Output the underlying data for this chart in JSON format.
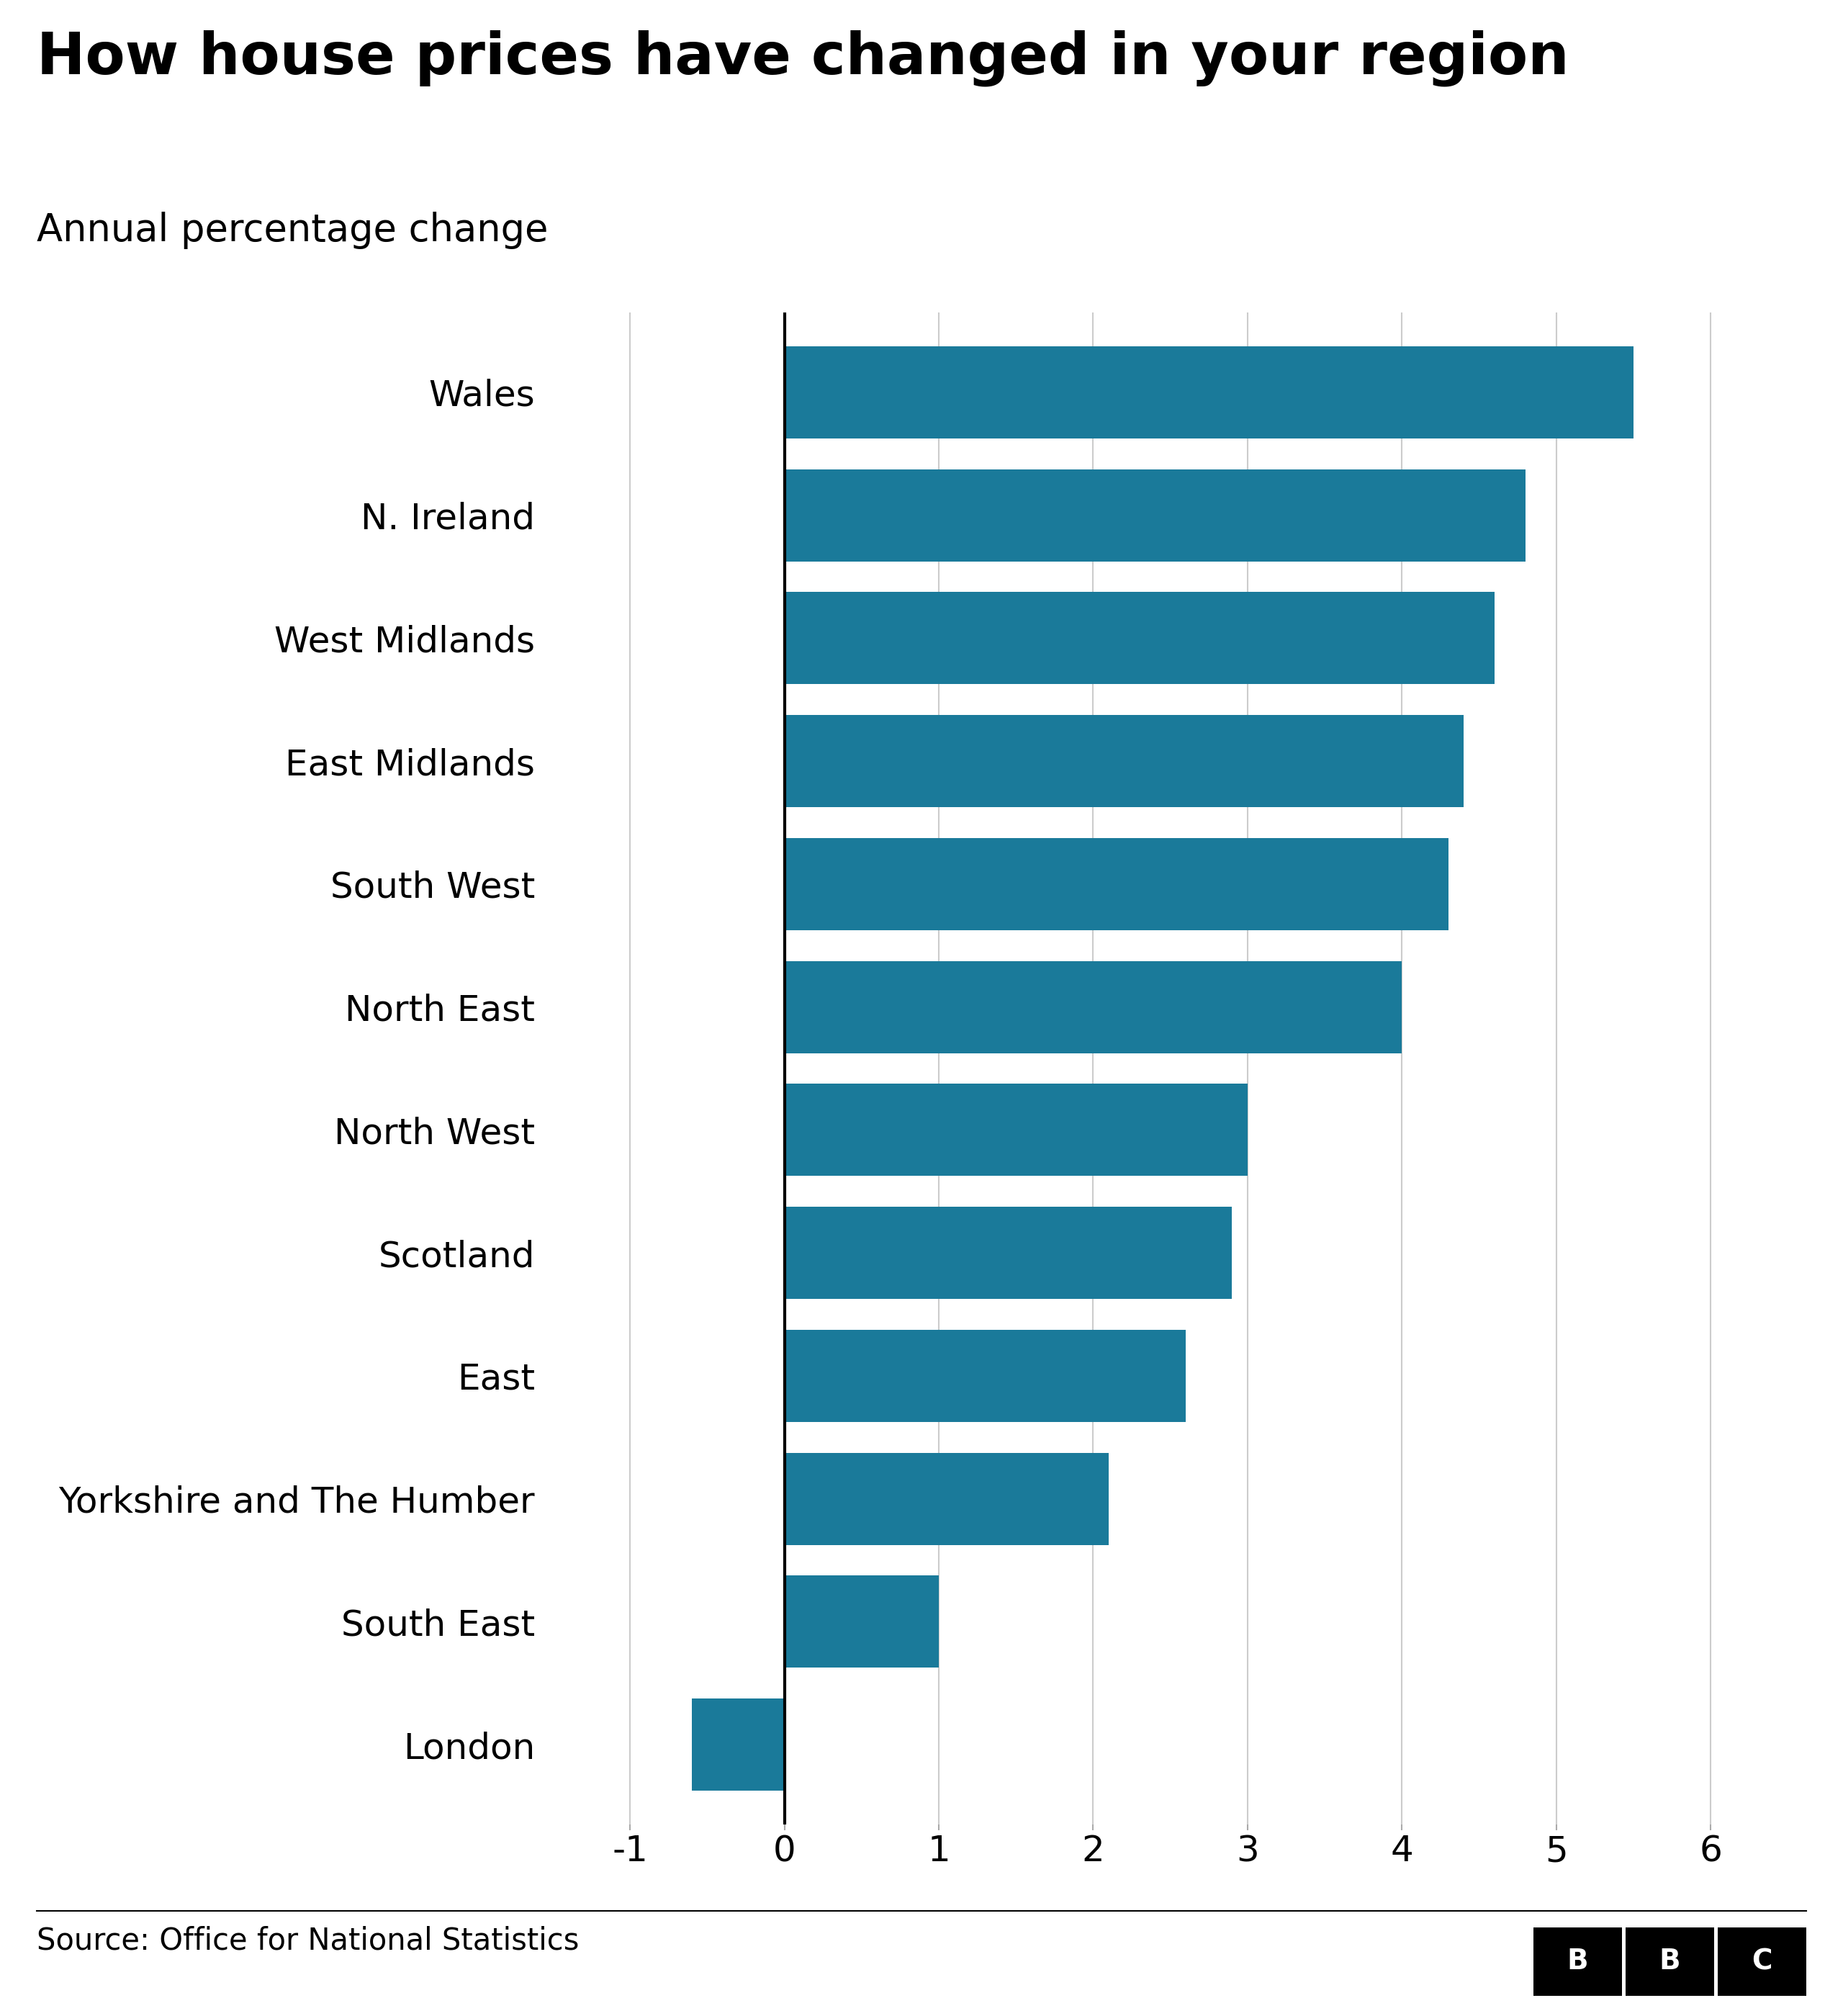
{
  "title": "How house prices have changed in your region",
  "subtitle": "Annual percentage change",
  "source": "Source: Office for National Statistics",
  "regions": [
    "Wales",
    "N. Ireland",
    "West Midlands",
    "East Midlands",
    "South West",
    "North East",
    "North West",
    "Scotland",
    "East",
    "Yorkshire and The Humber",
    "South East",
    "London"
  ],
  "values": [
    5.5,
    4.8,
    4.6,
    4.4,
    4.3,
    4.0,
    3.0,
    2.9,
    2.6,
    2.1,
    1.0,
    -0.6
  ],
  "bar_color": "#1a7a9a",
  "background_color": "#ffffff",
  "xlim": [
    -1.5,
    6.5
  ],
  "xticks": [
    -1,
    0,
    1,
    2,
    3,
    4,
    5,
    6
  ],
  "title_fontsize": 58,
  "subtitle_fontsize": 38,
  "tick_fontsize": 36,
  "label_fontsize": 36,
  "source_fontsize": 30,
  "bar_height": 0.75
}
